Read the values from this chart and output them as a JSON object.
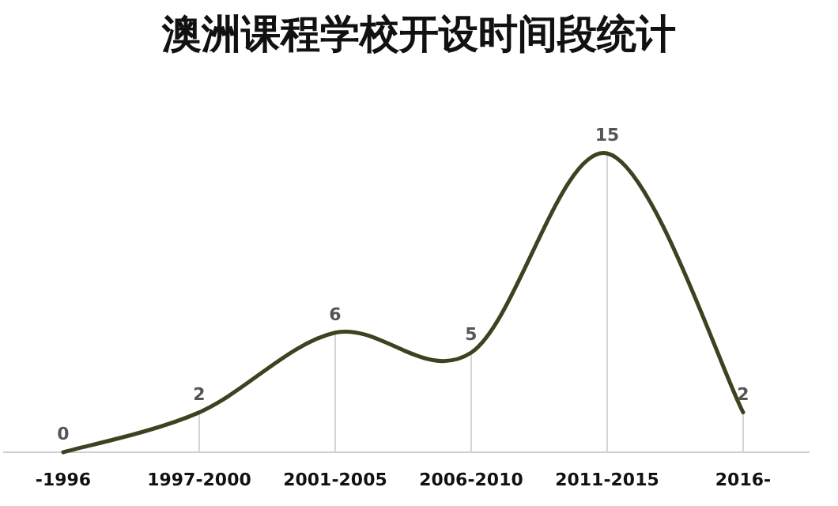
{
  "chart_data": {
    "type": "line",
    "title": "澳洲课程学校开设时间段统计",
    "categories": [
      "-1996",
      "1997-2000",
      "2001-2005",
      "2006-2010",
      "2011-2015",
      "2016-"
    ],
    "series": [
      {
        "color": "#3a4420",
        "values": [
          0,
          2,
          6,
          5,
          15,
          2
        ]
      }
    ],
    "data_labels": true,
    "grid": "x",
    "marker": "none",
    "line_style": "solid",
    "tick_labels": "x"
  }
}
